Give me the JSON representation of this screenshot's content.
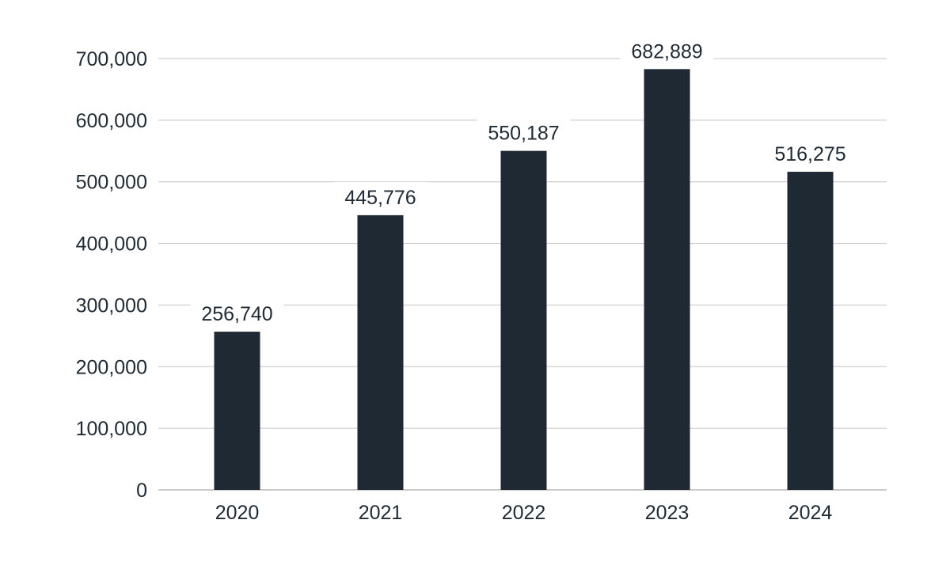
{
  "chart_data": {
    "type": "bar",
    "categories": [
      "2020",
      "2021",
      "2022",
      "2023",
      "2024"
    ],
    "values": [
      256740,
      445776,
      550187,
      682889,
      516275
    ],
    "data_labels": [
      "256,740",
      "445,776",
      "550,187",
      "682,889",
      "516,275"
    ],
    "title": "",
    "xlabel": "",
    "ylabel": "",
    "ylim": [
      0,
      700000
    ],
    "yticks": [
      0,
      100000,
      200000,
      300000,
      400000,
      500000,
      600000,
      700000
    ],
    "ytick_labels": [
      "0",
      "100,000",
      "200,000",
      "300,000",
      "400,000",
      "500,000",
      "600,000",
      "700,000"
    ],
    "grid": true,
    "legend": "none",
    "colors": {
      "bar": "#1e2933",
      "grid": "#c4c4c4",
      "text": "#1f2a33"
    }
  }
}
